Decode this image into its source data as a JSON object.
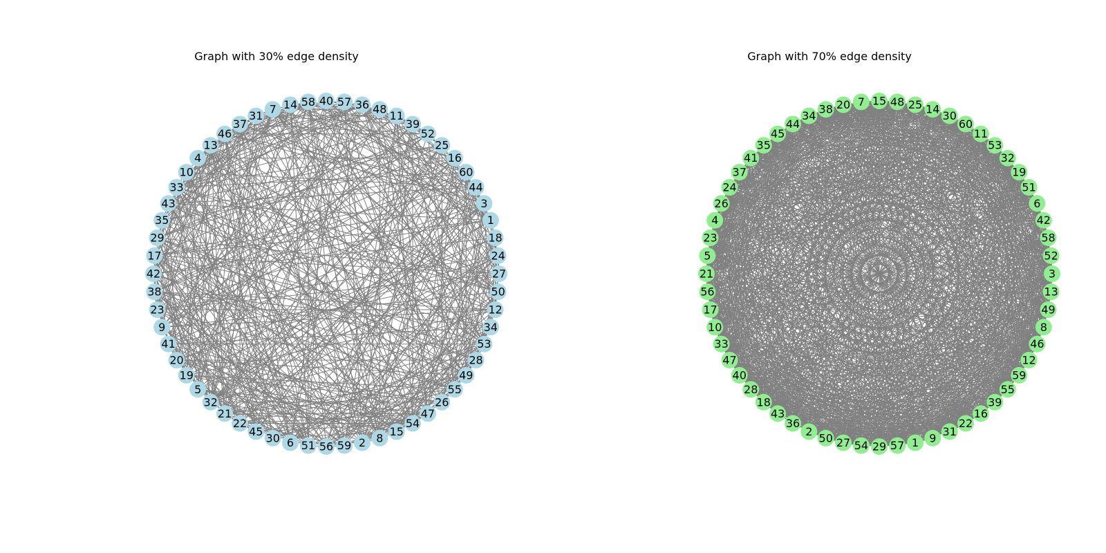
{
  "graphs": [
    {
      "title": "Graph with 30% edge density",
      "node_color": "#add8e6",
      "edge_color": "#808080",
      "edge_density": 0.3,
      "node_order": [
        27,
        24,
        18,
        1,
        3,
        44,
        60,
        16,
        25,
        52,
        39,
        11,
        48,
        36,
        57,
        40,
        58,
        14,
        7,
        31,
        37,
        46,
        13,
        4,
        10,
        33,
        43,
        35,
        29,
        17,
        42,
        38,
        23,
        9,
        41,
        20,
        19,
        5,
        32,
        21,
        22,
        45,
        30,
        6,
        51,
        56,
        59,
        2,
        8,
        15,
        54,
        47,
        26,
        55,
        49,
        28,
        53,
        34,
        12,
        50
      ]
    },
    {
      "title": "Graph with 70% edge density",
      "node_color": "#90ee90",
      "edge_color": "#808080",
      "edge_density": 0.7,
      "node_order": [
        3,
        52,
        58,
        42,
        6,
        51,
        19,
        32,
        53,
        11,
        60,
        30,
        14,
        25,
        48,
        15,
        7,
        20,
        38,
        34,
        44,
        45,
        35,
        41,
        37,
        24,
        26,
        4,
        23,
        5,
        21,
        56,
        17,
        10,
        33,
        47,
        40,
        28,
        18,
        43,
        36,
        2,
        50,
        27,
        54,
        29,
        57,
        1,
        9,
        31,
        22,
        16,
        39,
        55,
        59,
        12,
        46,
        8,
        49,
        13
      ]
    }
  ]
}
